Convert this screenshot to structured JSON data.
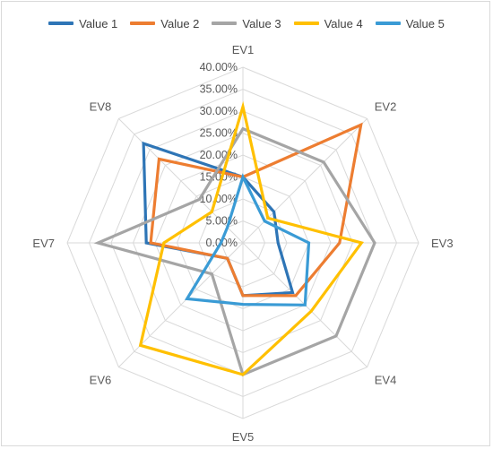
{
  "chart_data": {
    "type": "radar",
    "categories": [
      "EV1",
      "EV2",
      "EV3",
      "EV4",
      "EV5",
      "EV6",
      "EV7",
      "EV8"
    ],
    "rlim": [
      0,
      40
    ],
    "ticks": [
      "0.00%",
      "5.00%",
      "10.00%",
      "15.00%",
      "20.00%",
      "25.00%",
      "30.00%",
      "35.00%",
      "40.00%"
    ],
    "legend_position": "top",
    "grid": true,
    "series": [
      {
        "name": "Value 1",
        "color": "#2e75b6",
        "values": [
          15,
          10,
          8,
          16,
          12,
          5,
          22,
          32
        ]
      },
      {
        "name": "Value 2",
        "color": "#ed7d31",
        "values": [
          15,
          38,
          22,
          17,
          12,
          5,
          21,
          27
        ]
      },
      {
        "name": "Value 3",
        "color": "#a5a5a5",
        "values": [
          26,
          26,
          30,
          30,
          30,
          10,
          33,
          14
        ]
      },
      {
        "name": "Value 4",
        "color": "#ffc000",
        "values": [
          31,
          8,
          27,
          22,
          30,
          33,
          18,
          10
        ]
      },
      {
        "name": "Value 5",
        "color": "#3a9bd5",
        "values": [
          15,
          7,
          15,
          20,
          14,
          18,
          5,
          5
        ]
      }
    ]
  }
}
